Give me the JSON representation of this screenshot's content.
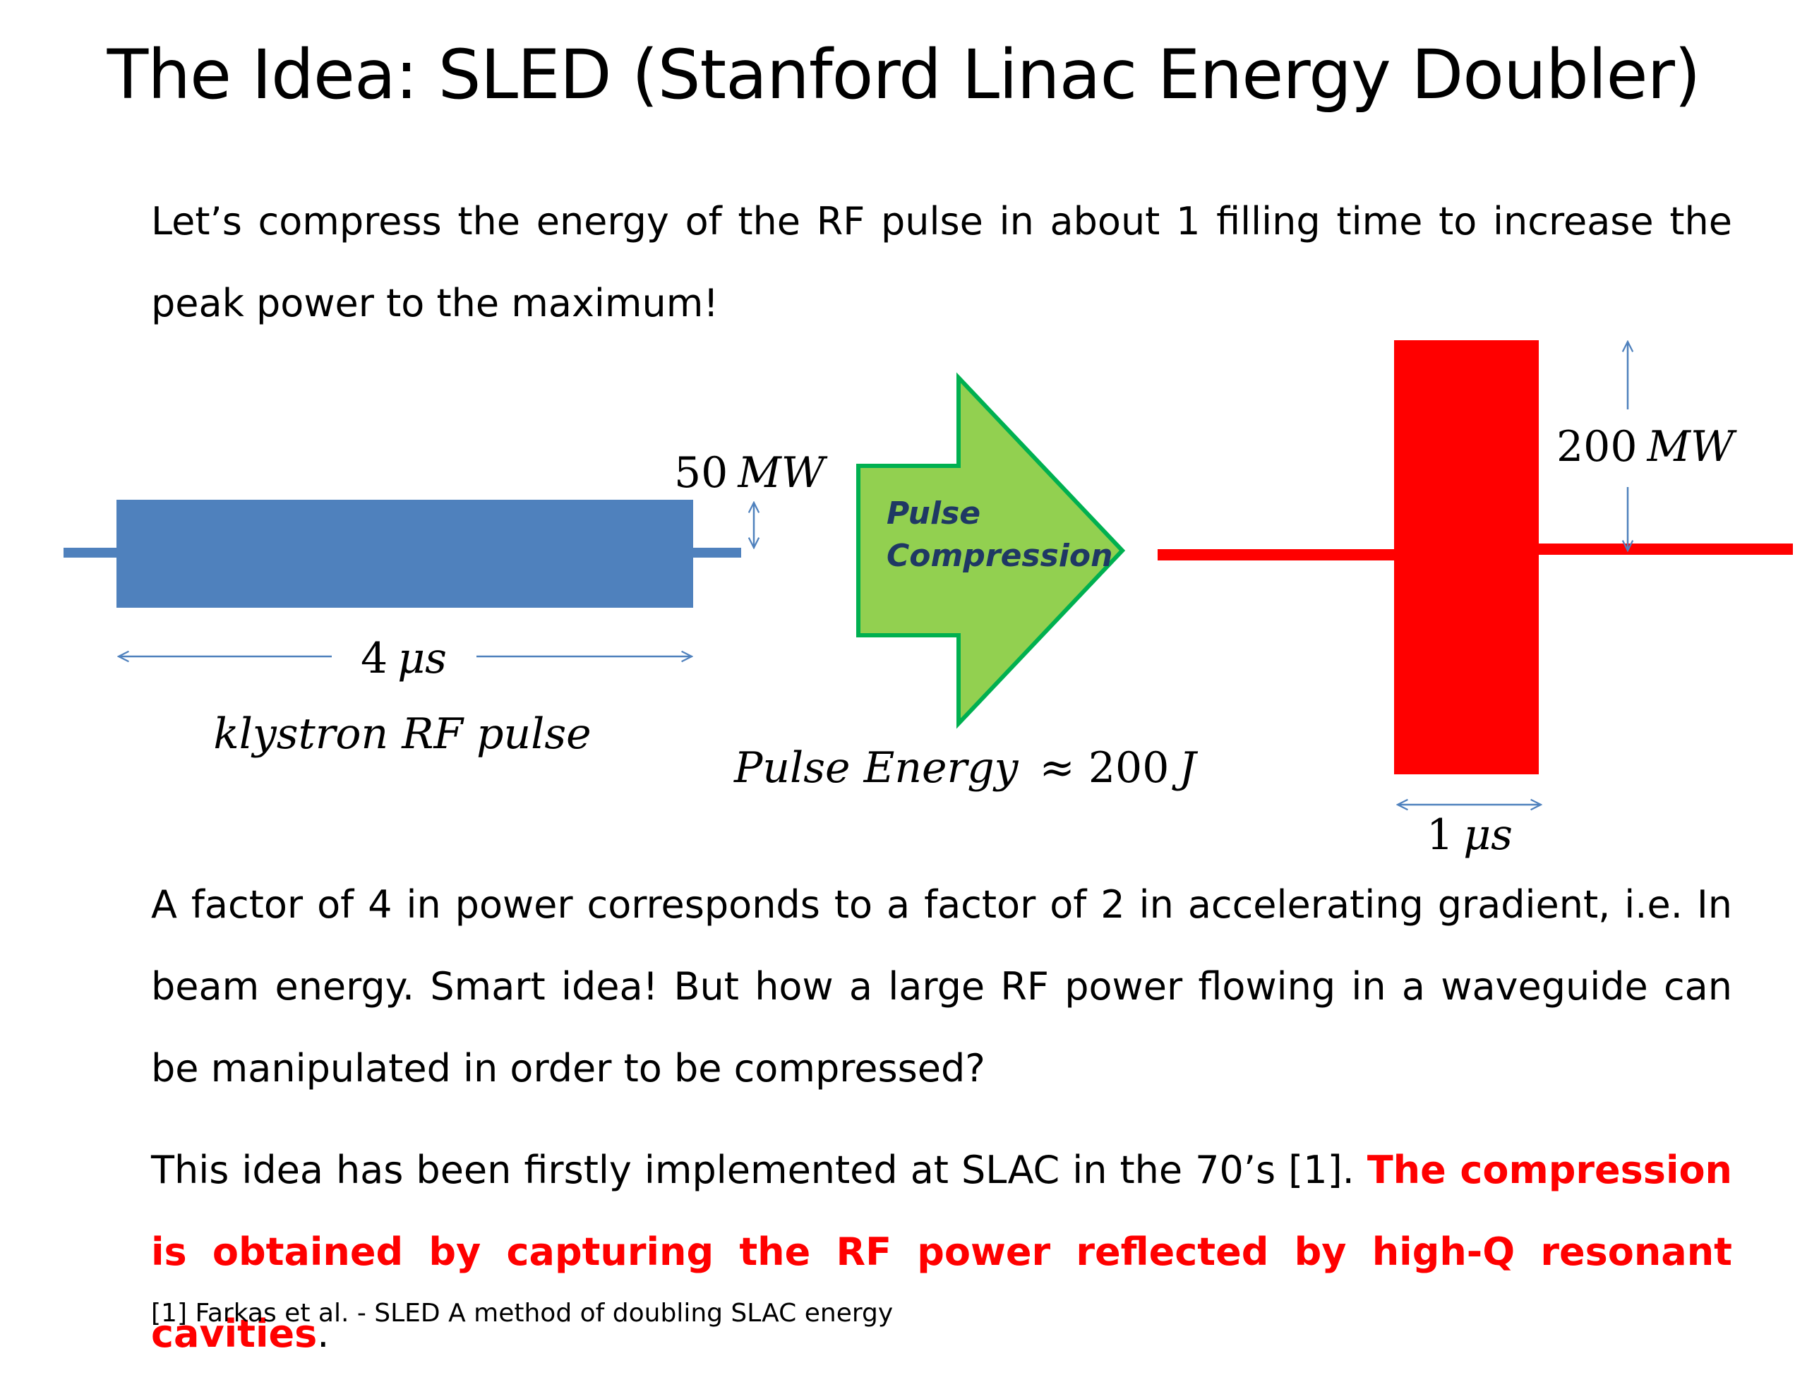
{
  "title": "The Idea: SLED (Stanford Linac Energy Doubler)",
  "intro": "Let’s compress the energy of the RF pulse in about 1 filling  time to increase the peak power to the maximum!",
  "diagram": {
    "input_power_value": "50",
    "input_power_unit": "MW",
    "input_duration_value": "4",
    "input_duration_unit": "μs",
    "input_caption": "klystron RF pulse",
    "compressor_line1": "Pulse",
    "compressor_line2": "Compression",
    "energy_label": "Pulse Energy",
    "energy_relation": "≈ 200",
    "energy_unit": "J",
    "output_power_value": "200",
    "output_power_unit": "MW",
    "output_duration_value": "1",
    "output_duration_unit": "μs",
    "colors": {
      "input_pulse": "#4f81bd",
      "arrow_fill": "#92d050",
      "arrow_stroke": "#00b050",
      "arrow_text": "#1f3864",
      "output_pulse": "#ff0000",
      "dimension_arrows": "#4f81bd"
    }
  },
  "para2": "A factor of 4 in power corresponds to a factor of 2 in accelerating gradient, i.e. In beam energy. Smart idea! But how a large RF power flowing in a waveguide can be manipulated in order to be compressed?",
  "para3_plain": "This idea has been firstly implemented at SLAC in the 70’s [1]. ",
  "para3_highlight": "The compression is obtained by capturing the RF power reflected by high-Q resonant cavities",
  "para3_end": ".",
  "reference": "[1] Farkas et al. - SLED A method of doubling SLAC energy"
}
